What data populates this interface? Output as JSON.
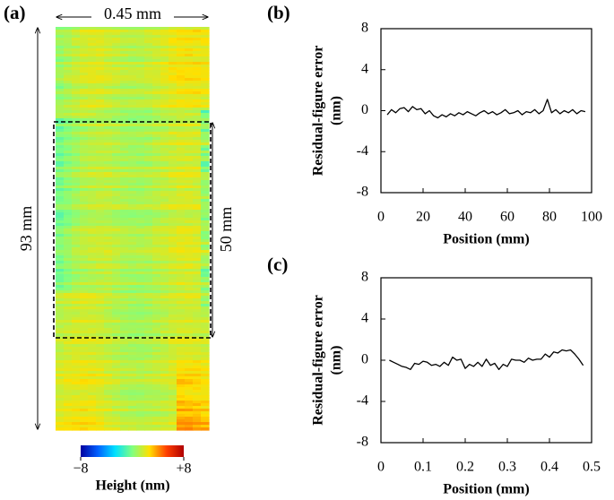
{
  "chart_data": [
    {
      "type": "heatmap",
      "label": "(a)",
      "width_label": "0.45 mm",
      "length_label": "93 mm",
      "region_label": "50 mm",
      "colorbar": {
        "label": "Height (nm)",
        "clim": [
          -8,
          8
        ],
        "ticks": [
          {
            "value": -8,
            "label": "−8"
          },
          {
            "value": 8,
            "label": "+8"
          }
        ],
        "colors": [
          "#0000a0",
          "#0060ff",
          "#00e0ff",
          "#80ff80",
          "#ffe000",
          "#ff4000",
          "#b00000"
        ]
      }
    },
    {
      "type": "line",
      "label": "(b)",
      "xlabel": "Position (mm)",
      "ylabel": [
        "Residual-figure error",
        "(nm)"
      ],
      "x": [
        3,
        5,
        7,
        9,
        11,
        13,
        15,
        17,
        19,
        21,
        23,
        25,
        27,
        29,
        31,
        33,
        35,
        37,
        39,
        41,
        43,
        45,
        47,
        49,
        51,
        53,
        55,
        57,
        59,
        61,
        63,
        65,
        67,
        69,
        71,
        73,
        75,
        77,
        79,
        81,
        83,
        85,
        87,
        89,
        91,
        93,
        95,
        97
      ],
      "series": [
        {
          "color": "#000000",
          "values": [
            -0.4,
            0.1,
            -0.2,
            0.2,
            0.3,
            -0.1,
            0.4,
            0.1,
            0.2,
            -0.3,
            0.0,
            -0.5,
            -0.7,
            -0.4,
            -0.6,
            -0.3,
            -0.5,
            -0.2,
            -0.4,
            -0.1,
            -0.3,
            -0.5,
            -0.2,
            0.0,
            -0.3,
            -0.1,
            -0.4,
            -0.2,
            0.1,
            -0.3,
            -0.2,
            0.0,
            -0.4,
            -0.1,
            -0.2,
            0.1,
            -0.3,
            0.0,
            1.1,
            -0.2,
            0.1,
            -0.3,
            0.0,
            -0.2,
            0.1,
            -0.3,
            0.0,
            -0.1
          ]
        }
      ],
      "xlim": [
        0,
        100
      ],
      "ylim": [
        -8,
        8
      ],
      "xticks": [
        0,
        20,
        40,
        60,
        80,
        100
      ],
      "yticks": [
        -8,
        -4,
        0,
        4,
        8
      ]
    },
    {
      "type": "line",
      "label": "(c)",
      "xlabel": "Position (mm)",
      "ylabel": [
        "Residual-figure error",
        "(nm)"
      ],
      "x": [
        0.02,
        0.03,
        0.04,
        0.05,
        0.06,
        0.07,
        0.08,
        0.09,
        0.1,
        0.11,
        0.12,
        0.13,
        0.14,
        0.15,
        0.16,
        0.17,
        0.18,
        0.19,
        0.2,
        0.21,
        0.22,
        0.23,
        0.24,
        0.25,
        0.26,
        0.27,
        0.28,
        0.29,
        0.3,
        0.31,
        0.32,
        0.33,
        0.34,
        0.35,
        0.36,
        0.37,
        0.38,
        0.39,
        0.4,
        0.41,
        0.42,
        0.43,
        0.44,
        0.45,
        0.46,
        0.47,
        0.48
      ],
      "series": [
        {
          "color": "#000000",
          "values": [
            0.0,
            -0.2,
            -0.4,
            -0.6,
            -0.7,
            -0.9,
            -0.3,
            -0.4,
            -0.1,
            -0.2,
            -0.5,
            -0.4,
            -0.6,
            -0.2,
            -0.5,
            0.3,
            0.0,
            0.1,
            -0.8,
            -0.4,
            -0.6,
            -0.2,
            -0.6,
            0.1,
            -0.5,
            -0.3,
            -0.9,
            -0.4,
            -0.6,
            0.1,
            0.0,
            0.0,
            -0.2,
            0.2,
            0.0,
            0.1,
            0.1,
            0.6,
            0.3,
            0.8,
            0.7,
            1.0,
            0.9,
            1.0,
            0.6,
            0.1,
            -0.5
          ]
        }
      ],
      "xlim": [
        0,
        0.5
      ],
      "ylim": [
        -8,
        8
      ],
      "xticks": [
        0,
        0.1,
        0.2,
        0.3,
        0.4,
        0.5
      ],
      "yticks": [
        -8,
        -4,
        0,
        4,
        8
      ]
    }
  ]
}
